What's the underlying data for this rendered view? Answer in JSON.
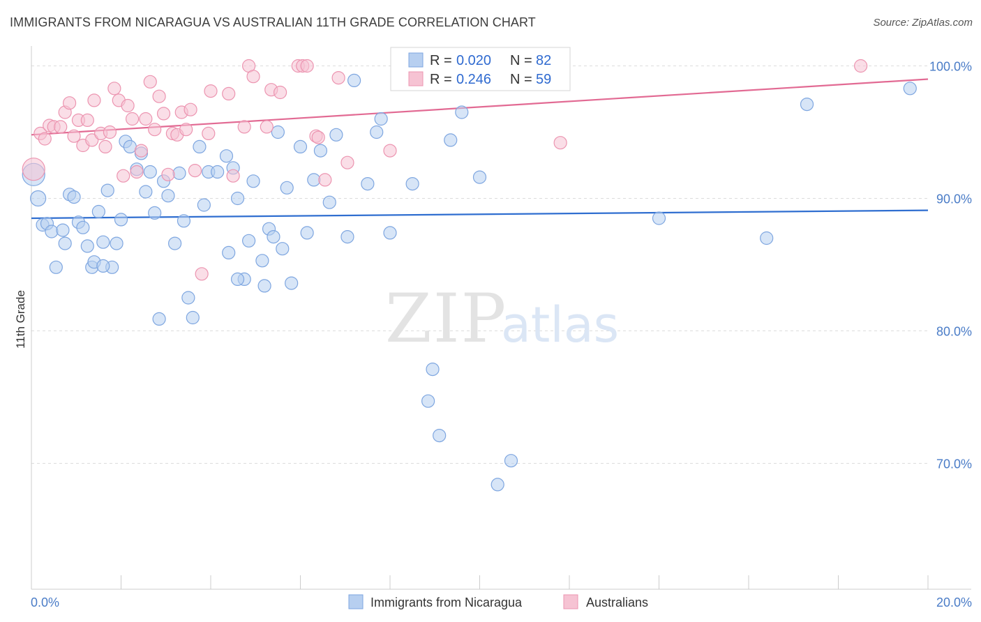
{
  "title": "IMMIGRANTS FROM NICARAGUA VS AUSTRALIAN 11TH GRADE CORRELATION CHART",
  "source": "Source: ZipAtlas.com",
  "watermark": {
    "zip": "ZIP",
    "atlas": "atlas"
  },
  "legend_top": [
    {
      "r_label": "R =",
      "r_value": "0.020",
      "n_label": "N =",
      "n_value": "82"
    },
    {
      "r_label": "R =",
      "r_value": "0.246",
      "n_label": "N =",
      "n_value": "59"
    }
  ],
  "colors": {
    "blue_fill": "#b7cff0",
    "blue_stroke": "#7ea6e0",
    "blue_line": "#2f6ed0",
    "pink_fill": "#f6c3d3",
    "pink_stroke": "#ec94b0",
    "pink_line": "#e26a93",
    "tick_text": "#4a7cc7",
    "grid": "#dcdcdc"
  },
  "chart_data": {
    "type": "scatter",
    "title": "IMMIGRANTS FROM NICARAGUA VS AUSTRALIAN 11TH GRADE CORRELATION CHART",
    "xlabel": "",
    "ylabel": "11th Grade",
    "xlim": [
      0,
      20
    ],
    "ylim": [
      60.5,
      101.5
    ],
    "x_tick_labels": [
      "0.0%",
      "20.0%"
    ],
    "y_ticks": [
      70,
      80,
      90,
      100
    ],
    "y_tick_labels": [
      "70.0%",
      "80.0%",
      "90.0%",
      "100.0%"
    ],
    "grid": true,
    "legend_position": "top-center",
    "series": [
      {
        "name": "Immigrants from Nicaragua",
        "color": "#b7cff0",
        "trend": {
          "x": [
            0,
            20
          ],
          "y": [
            88.5,
            89.1
          ]
        },
        "points": [
          [
            0.05,
            91.8,
            16
          ],
          [
            0.15,
            90.0,
            11
          ],
          [
            0.25,
            88.0,
            9
          ],
          [
            0.35,
            88.1,
            9
          ],
          [
            0.45,
            87.5,
            9
          ],
          [
            0.55,
            84.8,
            9
          ],
          [
            0.7,
            87.6,
            9
          ],
          [
            0.75,
            86.6,
            9
          ],
          [
            0.85,
            90.3,
            9
          ],
          [
            0.95,
            90.1,
            9
          ],
          [
            1.05,
            88.2,
            9
          ],
          [
            1.15,
            87.8,
            9
          ],
          [
            1.25,
            86.4,
            9
          ],
          [
            1.35,
            84.8,
            9
          ],
          [
            1.4,
            85.2,
            9
          ],
          [
            1.5,
            89.0,
            9
          ],
          [
            1.6,
            86.7,
            9
          ],
          [
            1.7,
            90.6,
            9
          ],
          [
            1.8,
            84.8,
            9
          ],
          [
            1.9,
            86.6,
            9
          ],
          [
            2.0,
            88.4,
            9
          ],
          [
            2.1,
            94.3,
            9
          ],
          [
            2.2,
            93.9,
            9
          ],
          [
            2.35,
            92.2,
            9
          ],
          [
            2.45,
            93.4,
            9
          ],
          [
            2.55,
            90.5,
            9
          ],
          [
            2.65,
            92.0,
            9
          ],
          [
            2.75,
            88.9,
            9
          ],
          [
            2.85,
            80.9,
            9
          ],
          [
            2.95,
            91.3,
            9
          ],
          [
            3.05,
            90.2,
            9
          ],
          [
            3.2,
            86.6,
            9
          ],
          [
            3.3,
            91.9,
            9
          ],
          [
            3.4,
            88.3,
            9
          ],
          [
            3.5,
            82.5,
            9
          ],
          [
            3.6,
            81.0,
            9
          ],
          [
            3.75,
            93.9,
            9
          ],
          [
            3.85,
            89.5,
            9
          ],
          [
            3.95,
            92.0,
            9
          ],
          [
            4.15,
            92.0,
            9
          ],
          [
            4.35,
            93.2,
            9
          ],
          [
            4.5,
            92.3,
            9
          ],
          [
            4.4,
            85.9,
            9
          ],
          [
            4.6,
            90.0,
            9
          ],
          [
            4.75,
            83.9,
            9
          ],
          [
            4.85,
            86.8,
            9
          ],
          [
            4.95,
            91.3,
            9
          ],
          [
            5.15,
            85.3,
            9
          ],
          [
            5.2,
            83.4,
            9
          ],
          [
            5.3,
            87.7,
            9
          ],
          [
            5.4,
            87.1,
            9
          ],
          [
            5.5,
            95.0,
            9
          ],
          [
            5.6,
            86.2,
            9
          ],
          [
            5.7,
            90.8,
            9
          ],
          [
            5.8,
            83.6,
            9
          ],
          [
            6.0,
            93.9,
            9
          ],
          [
            6.15,
            87.4,
            9
          ],
          [
            6.3,
            91.4,
            9
          ],
          [
            6.45,
            93.6,
            9
          ],
          [
            6.65,
            89.7,
            9
          ],
          [
            6.8,
            94.8,
            9
          ],
          [
            7.05,
            87.1,
            9
          ],
          [
            7.2,
            98.9,
            9
          ],
          [
            7.5,
            91.1,
            9
          ],
          [
            7.7,
            95.0,
            9
          ],
          [
            7.8,
            96.0,
            9
          ],
          [
            8.0,
            87.4,
            9
          ],
          [
            8.5,
            91.1,
            9
          ],
          [
            8.95,
            77.1,
            9
          ],
          [
            8.85,
            74.7,
            9
          ],
          [
            9.1,
            72.1,
            9
          ],
          [
            9.35,
            94.4,
            9
          ],
          [
            9.6,
            96.5,
            9
          ],
          [
            10.0,
            91.6,
            9
          ],
          [
            10.4,
            68.4,
            9
          ],
          [
            10.7,
            70.2,
            9
          ],
          [
            14.0,
            88.5,
            9
          ],
          [
            16.4,
            87.0,
            9
          ],
          [
            17.3,
            97.1,
            9
          ],
          [
            19.6,
            98.3,
            9
          ],
          [
            1.6,
            84.9,
            9
          ],
          [
            4.6,
            83.9,
            9
          ]
        ]
      },
      {
        "name": "Australians",
        "color": "#f6c3d3",
        "trend": {
          "x": [
            0,
            20
          ],
          "y": [
            94.8,
            99.0
          ]
        },
        "points": [
          [
            0.05,
            92.2,
            16
          ],
          [
            0.2,
            94.9,
            9
          ],
          [
            0.3,
            94.5,
            9
          ],
          [
            0.4,
            95.5,
            9
          ],
          [
            0.5,
            95.4,
            9
          ],
          [
            0.65,
            95.4,
            9
          ],
          [
            0.75,
            96.5,
            9
          ],
          [
            0.85,
            97.2,
            9
          ],
          [
            0.95,
            94.7,
            9
          ],
          [
            1.05,
            95.9,
            9
          ],
          [
            1.15,
            94.0,
            9
          ],
          [
            1.25,
            95.9,
            9
          ],
          [
            1.35,
            94.4,
            9
          ],
          [
            1.4,
            97.4,
            9
          ],
          [
            1.55,
            94.9,
            9
          ],
          [
            1.65,
            93.9,
            9
          ],
          [
            1.75,
            95.0,
            9
          ],
          [
            1.85,
            98.3,
            9
          ],
          [
            1.95,
            97.4,
            9
          ],
          [
            2.05,
            91.7,
            9
          ],
          [
            2.15,
            97.0,
            9
          ],
          [
            2.25,
            96.0,
            9
          ],
          [
            2.35,
            92.0,
            9
          ],
          [
            2.45,
            93.6,
            9
          ],
          [
            2.55,
            96.0,
            9
          ],
          [
            2.65,
            98.8,
            9
          ],
          [
            2.75,
            95.2,
            9
          ],
          [
            2.85,
            97.7,
            9
          ],
          [
            2.95,
            96.4,
            9
          ],
          [
            3.05,
            91.8,
            9
          ],
          [
            3.15,
            94.9,
            9
          ],
          [
            3.25,
            94.8,
            9
          ],
          [
            3.35,
            96.5,
            9
          ],
          [
            3.45,
            95.2,
            9
          ],
          [
            3.55,
            96.7,
            9
          ],
          [
            3.65,
            92.1,
            9
          ],
          [
            3.8,
            84.3,
            9
          ],
          [
            3.95,
            94.9,
            9
          ],
          [
            4.0,
            98.1,
            9
          ],
          [
            4.4,
            97.9,
            9
          ],
          [
            4.5,
            91.7,
            9
          ],
          [
            4.75,
            95.4,
            9
          ],
          [
            4.85,
            100.0,
            9
          ],
          [
            4.95,
            99.2,
            9
          ],
          [
            5.25,
            95.4,
            9
          ],
          [
            5.35,
            98.2,
            9
          ],
          [
            5.55,
            98.0,
            9
          ],
          [
            5.95,
            100.0,
            9
          ],
          [
            6.05,
            100.0,
            9
          ],
          [
            6.15,
            100.0,
            9
          ],
          [
            6.35,
            94.7,
            9
          ],
          [
            6.4,
            94.6,
            9
          ],
          [
            6.55,
            91.4,
            9
          ],
          [
            6.85,
            99.1,
            9
          ],
          [
            7.05,
            92.7,
            9
          ],
          [
            8.0,
            93.6,
            9
          ],
          [
            11.5,
            100.0,
            9
          ],
          [
            11.8,
            94.2,
            9
          ],
          [
            18.5,
            100.0,
            9
          ]
        ]
      }
    ]
  }
}
